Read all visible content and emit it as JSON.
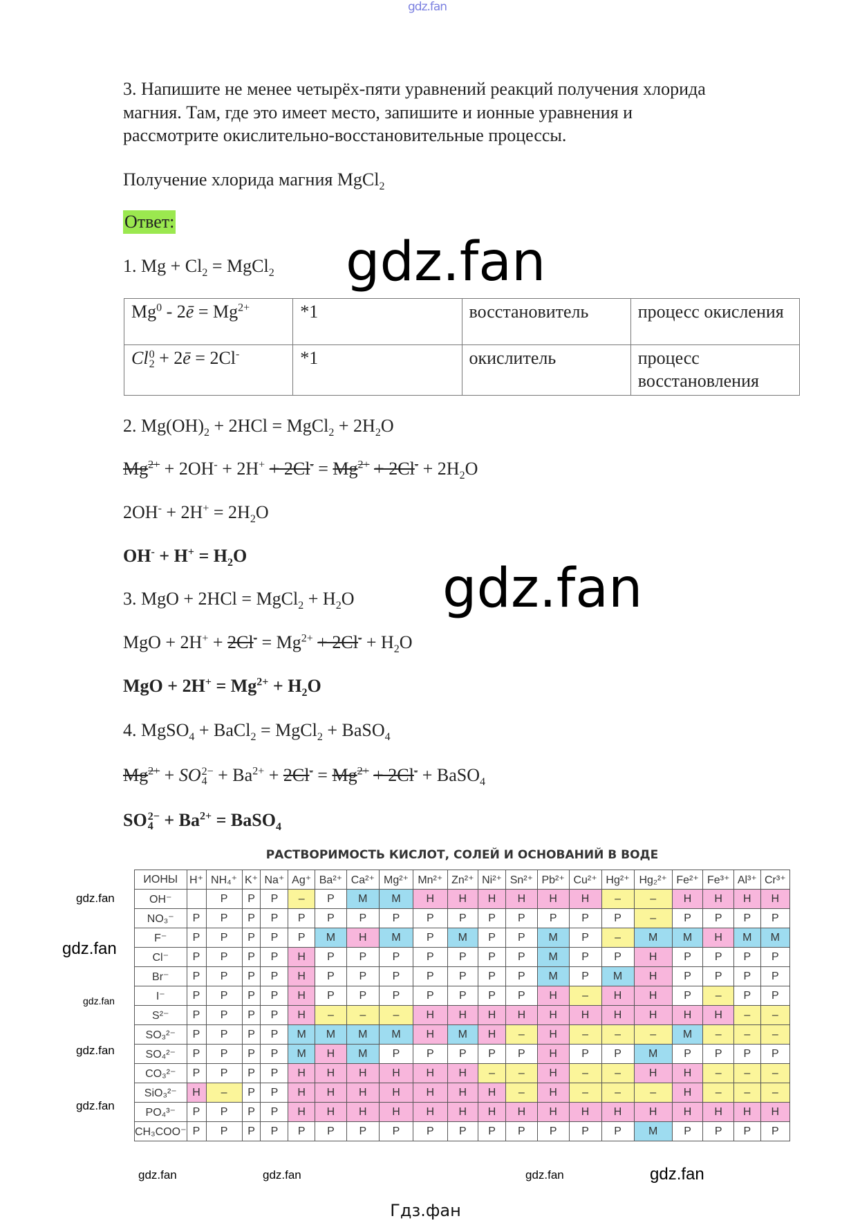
{
  "watermark": {
    "top": "gdz.fan",
    "big": "gdz.fan",
    "small": "gdz.fan"
  },
  "question": [
    "3. Напишите не менее четырёх-пяти уравнений реакций получения хлорида",
    "магния. Там, где это имеет место, запишите и ионные уравнения и",
    "рассмотрите окислительно-восстановительные процессы."
  ],
  "subtitle": [
    {
      "t": "Получение хлорида магния MgCl"
    },
    {
      "t": "2",
      "k": "b"
    }
  ],
  "answer_label": "Ответ:",
  "equations": [
    {
      "bold": false,
      "seg": [
        {
          "t": "1. Mg + Cl"
        },
        {
          "t": "2",
          "k": "b"
        },
        {
          "t": " = MgCl"
        },
        {
          "t": "2",
          "k": "b"
        }
      ]
    },
    {
      "bold": false,
      "seg": [
        {
          "t": "2. Mg(OH)"
        },
        {
          "t": "2",
          "k": "b"
        },
        {
          "t": " + 2HCl = MgCl"
        },
        {
          "t": "2",
          "k": "b"
        },
        {
          "t": " + 2H"
        },
        {
          "t": "2",
          "k": "b"
        },
        {
          "t": "O"
        }
      ]
    },
    {
      "bold": false,
      "seg": [
        {
          "t": "Mg",
          "k": "s"
        },
        {
          "t": "2+",
          "k": "sp"
        },
        {
          "t": " + 2OH"
        },
        {
          "t": "-",
          "k": "p"
        },
        {
          "t": " + 2H"
        },
        {
          "t": "+",
          "k": "p"
        },
        {
          "t": " "
        },
        {
          "t": "+ 2Cl",
          "k": "s"
        },
        {
          "t": "-",
          "k": "sp"
        },
        {
          "t": " = "
        },
        {
          "t": "Mg",
          "k": "s"
        },
        {
          "t": "2+",
          "k": "sp"
        },
        {
          "t": " "
        },
        {
          "t": "+ 2Cl",
          "k": "s"
        },
        {
          "t": "-",
          "k": "sp"
        },
        {
          "t": " + 2H"
        },
        {
          "t": "2",
          "k": "b"
        },
        {
          "t": "O"
        }
      ]
    },
    {
      "bold": false,
      "seg": [
        {
          "t": "2OH"
        },
        {
          "t": "-",
          "k": "p"
        },
        {
          "t": " + 2H"
        },
        {
          "t": "+",
          "k": "p"
        },
        {
          "t": " = 2H"
        },
        {
          "t": "2",
          "k": "b"
        },
        {
          "t": "O"
        }
      ]
    },
    {
      "bold": true,
      "seg": [
        {
          "t": "OH"
        },
        {
          "t": "-",
          "k": "p"
        },
        {
          "t": " + H"
        },
        {
          "t": "+",
          "k": "p"
        },
        {
          "t": " = H"
        },
        {
          "t": "2",
          "k": "b"
        },
        {
          "t": "O"
        }
      ]
    },
    {
      "bold": false,
      "seg": [
        {
          "t": "3. MgO + 2HCl = MgCl"
        },
        {
          "t": "2",
          "k": "b"
        },
        {
          "t": " + H"
        },
        {
          "t": "2",
          "k": "b"
        },
        {
          "t": "O"
        }
      ]
    },
    {
      "bold": false,
      "seg": [
        {
          "t": "MgO + 2H"
        },
        {
          "t": "+",
          "k": "p"
        },
        {
          "t": " + "
        },
        {
          "t": "2Cl",
          "k": "s"
        },
        {
          "t": "-",
          "k": "sp"
        },
        {
          "t": " = Mg"
        },
        {
          "t": "2+",
          "k": "p"
        },
        {
          "t": " "
        },
        {
          "t": "+ 2Cl",
          "k": "s"
        },
        {
          "t": "-",
          "k": "sp"
        },
        {
          "t": " + H"
        },
        {
          "t": "2",
          "k": "b"
        },
        {
          "t": "O"
        }
      ]
    },
    {
      "bold": true,
      "seg": [
        {
          "t": "MgO + 2H"
        },
        {
          "t": "+",
          "k": "p"
        },
        {
          "t": " = Mg"
        },
        {
          "t": "2+",
          "k": "p"
        },
        {
          "t": " + H"
        },
        {
          "t": "2",
          "k": "b"
        },
        {
          "t": "O"
        }
      ]
    },
    {
      "bold": false,
      "seg": [
        {
          "t": "4. MgSO"
        },
        {
          "t": "4",
          "k": "b"
        },
        {
          "t": " + BaCl"
        },
        {
          "t": "2",
          "k": "b"
        },
        {
          "t": " = MgCl"
        },
        {
          "t": "2",
          "k": "b"
        },
        {
          "t": " + BaSO"
        },
        {
          "t": "4",
          "k": "b"
        }
      ]
    },
    {
      "bold": false,
      "seg": [
        {
          "t": "Mg",
          "k": "s"
        },
        {
          "t": "2+",
          "k": "sp"
        },
        {
          "t": " + "
        },
        {
          "t": "SO",
          "k": "i"
        },
        {
          "t": "2−",
          "k": "st",
          "t2": "4"
        },
        {
          "t": " + Ba"
        },
        {
          "t": "2+",
          "k": "p"
        },
        {
          "t": " + "
        },
        {
          "t": "2Cl",
          "k": "s"
        },
        {
          "t": "-",
          "k": "sp"
        },
        {
          "t": " = "
        },
        {
          "t": "Mg",
          "k": "s"
        },
        {
          "t": "2+",
          "k": "sp"
        },
        {
          "t": " "
        },
        {
          "t": "+ 2Cl",
          "k": "s"
        },
        {
          "t": "-",
          "k": "sp"
        },
        {
          "t": " + BaSO"
        },
        {
          "t": "4",
          "k": "b"
        }
      ]
    },
    {
      "bold": true,
      "seg": [
        {
          "t": "SO"
        },
        {
          "t": "2−",
          "k": "st",
          "t2": "4"
        },
        {
          "t": " + Ba"
        },
        {
          "t": "2+",
          "k": "p"
        },
        {
          "t": " = BaSO"
        },
        {
          "t": "4",
          "k": "b"
        }
      ]
    }
  ],
  "redox_table": [
    {
      "eq": [
        {
          "t": "Mg"
        },
        {
          "t": "0",
          "k": "p"
        },
        {
          "t": " - 2"
        },
        {
          "t": "ē",
          "k": "i"
        },
        {
          "t": " = Mg"
        },
        {
          "t": "2+",
          "k": "p"
        }
      ],
      "coef": "*1",
      "role": "восстановитель",
      "process": "процесс окисления"
    },
    {
      "eq": [
        {
          "t": "Cl",
          "k": "i"
        },
        {
          "t": "0",
          "k": "st",
          "t2": "2"
        },
        {
          "t": " + 2"
        },
        {
          "t": "ē",
          "k": "i"
        },
        {
          "t": " = 2Cl"
        },
        {
          "t": "-",
          "k": "p"
        }
      ],
      "coef": "*1",
      "role": "окислитель",
      "process": "процесс восстановления"
    }
  ],
  "solubility": {
    "title": "РАСТВОРИМОСТЬ КИСЛОТ, СОЛЕЙ И ОСНОВАНИЙ В ВОДЕ",
    "corner": "ИОНЫ",
    "cations": [
      "H⁺",
      "NH₄⁺",
      "K⁺",
      "Na⁺",
      "Ag⁺",
      "Ba²⁺",
      "Ca²⁺",
      "Mg²⁺",
      "Mn²⁺",
      "Zn²⁺",
      "Ni²⁺",
      "Sn²⁺",
      "Pb²⁺",
      "Cu²⁺",
      "Hg²⁺",
      "Hg₂²⁺",
      "Fe²⁺",
      "Fe³⁺",
      "Al³⁺",
      "Cr³⁺"
    ],
    "colors": {
      "Р": "#ffffff",
      "Н": "#f8b6dc",
      "М": "#9edcf0",
      "–": "#fbf59a"
    },
    "rows": [
      {
        "anion": "OH⁻",
        "cells": [
          "",
          "Р",
          "Р",
          "Р",
          "–",
          "Р",
          "М",
          "М",
          "Н",
          "Н",
          "Н",
          "Н",
          "Н",
          "Н",
          "–",
          "–",
          "Н",
          "Н",
          "Н",
          "Н"
        ]
      },
      {
        "anion": "NO₃⁻",
        "cells": [
          "Р",
          "Р",
          "Р",
          "Р",
          "Р",
          "Р",
          "Р",
          "Р",
          "Р",
          "Р",
          "Р",
          "Р",
          "Р",
          "Р",
          "Р",
          "–",
          "Р",
          "Р",
          "Р",
          "Р"
        ]
      },
      {
        "anion": "F⁻",
        "cells": [
          "Р",
          "Р",
          "Р",
          "Р",
          "Р",
          "М",
          "Н",
          "М",
          "Р",
          "М",
          "Р",
          "Р",
          "М",
          "Р",
          "–",
          "М",
          "М",
          "Н",
          "М",
          "М"
        ]
      },
      {
        "anion": "Cl⁻",
        "cells": [
          "Р",
          "Р",
          "Р",
          "Р",
          "Н",
          "Р",
          "Р",
          "Р",
          "Р",
          "Р",
          "Р",
          "Р",
          "М",
          "Р",
          "Р",
          "Н",
          "Р",
          "Р",
          "Р",
          "Р"
        ]
      },
      {
        "anion": "Br⁻",
        "cells": [
          "Р",
          "Р",
          "Р",
          "Р",
          "Н",
          "Р",
          "Р",
          "Р",
          "Р",
          "Р",
          "Р",
          "Р",
          "М",
          "Р",
          "М",
          "Н",
          "Р",
          "Р",
          "Р",
          "Р"
        ]
      },
      {
        "anion": "I⁻",
        "cells": [
          "Р",
          "Р",
          "Р",
          "Р",
          "Н",
          "Р",
          "Р",
          "Р",
          "Р",
          "Р",
          "Р",
          "Р",
          "Н",
          "–",
          "Н",
          "Н",
          "Р",
          "–",
          "Р",
          "Р"
        ]
      },
      {
        "anion": "S²⁻",
        "cells": [
          "Р",
          "Р",
          "Р",
          "Р",
          "Н",
          "–",
          "–",
          "–",
          "Н",
          "Н",
          "Н",
          "Н",
          "Н",
          "Н",
          "Н",
          "Н",
          "Н",
          "Н",
          "–",
          "–"
        ]
      },
      {
        "anion": "SO₃²⁻",
        "cells": [
          "Р",
          "Р",
          "Р",
          "Р",
          "М",
          "М",
          "М",
          "М",
          "Н",
          "М",
          "Н",
          "–",
          "Н",
          "–",
          "–",
          "–",
          "М",
          "–",
          "–",
          "–"
        ]
      },
      {
        "anion": "SO₄²⁻",
        "cells": [
          "Р",
          "Р",
          "Р",
          "Р",
          "М",
          "Н",
          "М",
          "Р",
          "Р",
          "Р",
          "Р",
          "Р",
          "Н",
          "Р",
          "Р",
          "М",
          "Р",
          "Р",
          "Р",
          "Р"
        ]
      },
      {
        "anion": "CO₃²⁻",
        "cells": [
          "Р",
          "Р",
          "Р",
          "Р",
          "Н",
          "Н",
          "Н",
          "Н",
          "Н",
          "Н",
          "–",
          "–",
          "Н",
          "–",
          "–",
          "Н",
          "Н",
          "–",
          "–",
          "–"
        ]
      },
      {
        "anion": "SiO₃²⁻",
        "cells": [
          "Н",
          "–",
          "Р",
          "Р",
          "Н",
          "Н",
          "Н",
          "Н",
          "Н",
          "Н",
          "Н",
          "–",
          "Н",
          "–",
          "–",
          "–",
          "Н",
          "–",
          "–",
          "–"
        ]
      },
      {
        "anion": "PO₄³⁻",
        "cells": [
          "Р",
          "Р",
          "Р",
          "Р",
          "Н",
          "Н",
          "Н",
          "Н",
          "Н",
          "Н",
          "Н",
          "Н",
          "Н",
          "Н",
          "Н",
          "Н",
          "Н",
          "Н",
          "Н",
          "Н"
        ]
      },
      {
        "anion": "CH₃COO⁻",
        "cells": [
          "Р",
          "Р",
          "Р",
          "Р",
          "Р",
          "Р",
          "Р",
          "Р",
          "Р",
          "Р",
          "Р",
          "Р",
          "Р",
          "Р",
          "Р",
          "М",
          "Р",
          "Р",
          "Р",
          "Р"
        ]
      }
    ]
  },
  "footer": "Гдз.фан"
}
